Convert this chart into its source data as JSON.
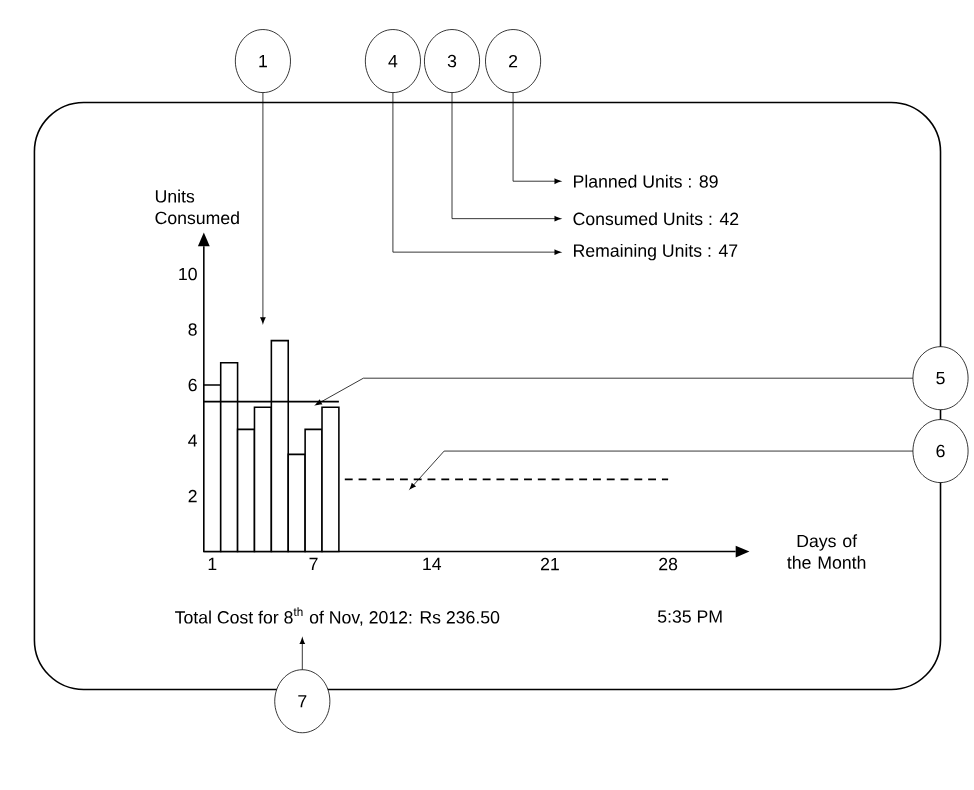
{
  "chart_data": {
    "type": "bar",
    "xlabel": "Days of the Month",
    "ylabel": "Units Consumed",
    "xlim": [
      0.5,
      32
    ],
    "ylim": [
      0,
      11
    ],
    "xticks": [
      1,
      7,
      14,
      21,
      28
    ],
    "yticks": [
      2,
      4,
      6,
      8,
      10
    ],
    "series": [
      {
        "color": "#ffffff",
        "x": [
          1,
          2,
          3,
          4,
          5,
          6,
          7,
          8
        ],
        "values": [
          6,
          6.8,
          4.4,
          5.2,
          7.6,
          3.5,
          4.4,
          5.2
        ]
      },
      {
        "type": "line",
        "color": "#000000",
        "line_style": "solid",
        "x": [
          0.5,
          8.5
        ],
        "values": [
          5.4,
          5.4
        ]
      },
      {
        "type": "line",
        "color": "#000000",
        "line_style": "dashed",
        "x": [
          8.5,
          28
        ],
        "values": [
          2.6,
          2.6
        ]
      }
    ],
    "annotations": [
      "1",
      "2",
      "3",
      "4",
      "5",
      "6",
      "7",
      "Planned Units : 89",
      "Consumed Units : 42",
      "Remaining Units : 47",
      "Total Cost for 8$^{th}$ of Nov, 2012: Rs 236.50",
      "5:35 PM"
    ]
  }
}
